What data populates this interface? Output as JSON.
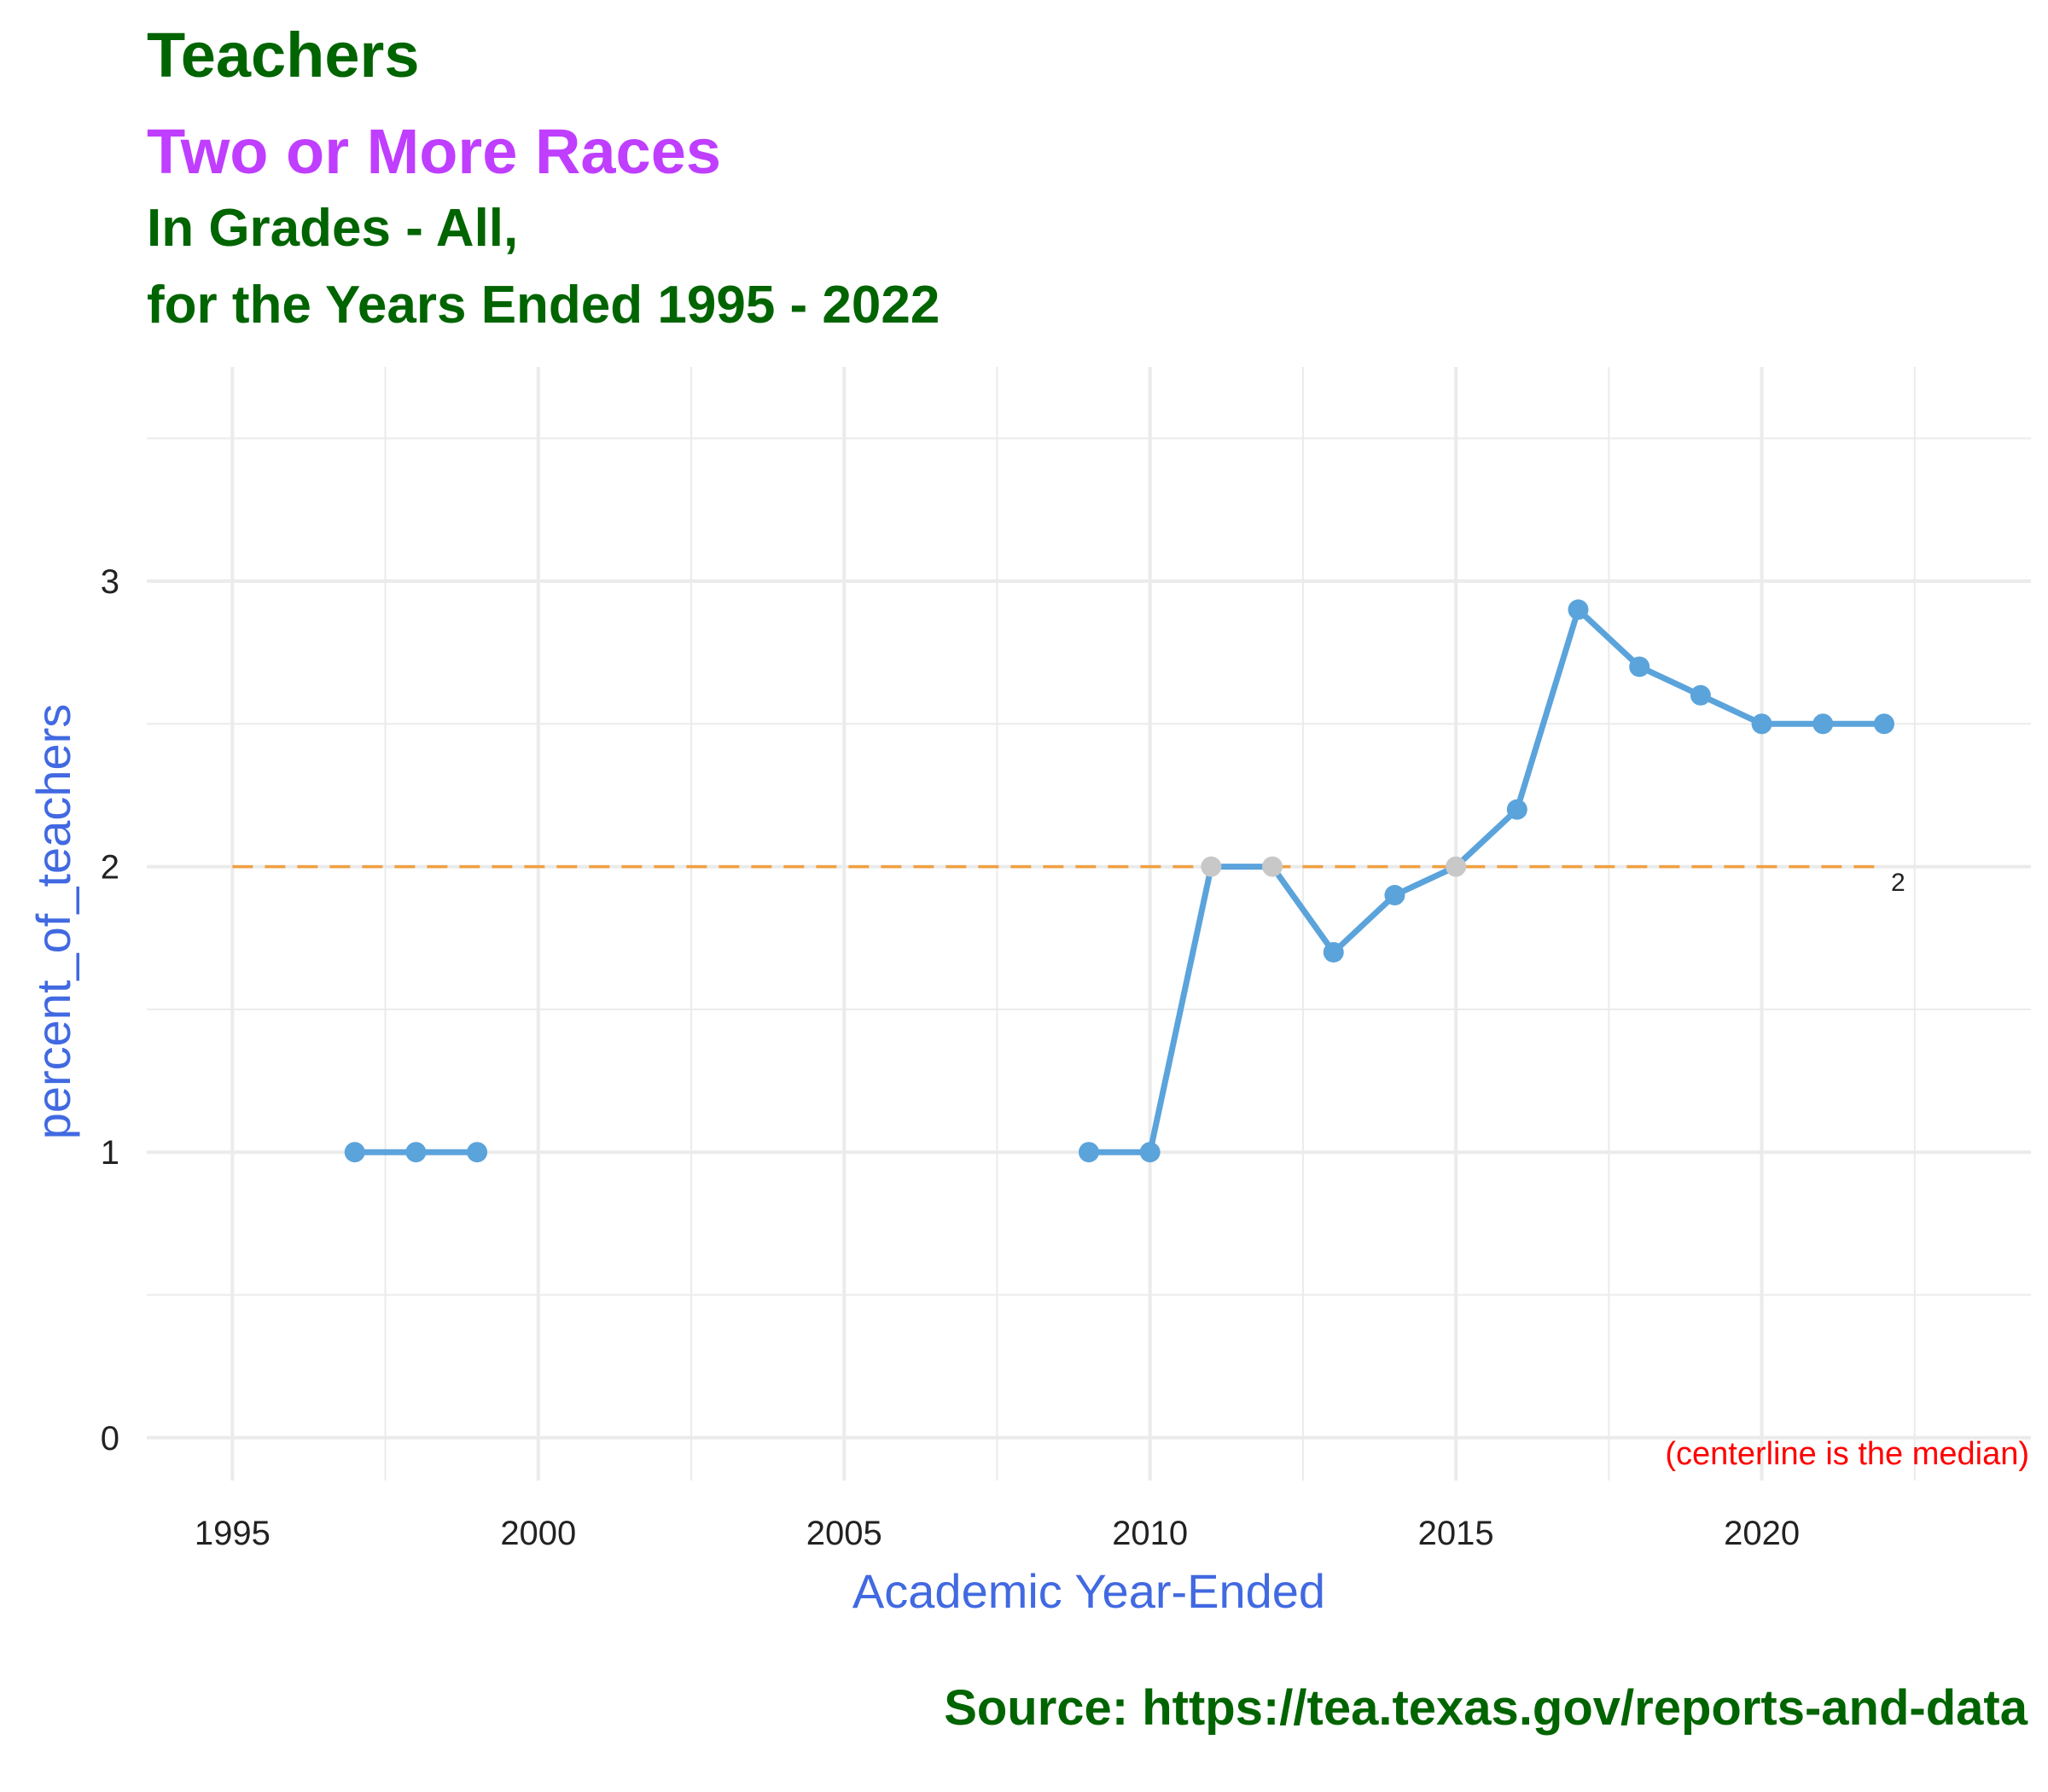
{
  "titles": {
    "line1": "Teachers",
    "line2": "Two or More Races",
    "line3": "In Grades - All,",
    "line4": "for the Years Ended 1995 - 2022"
  },
  "source": "Source:  https://tea.texas.gov/reports-and-data",
  "chart_data": {
    "type": "line",
    "xlabel": "Academic Year-Ended",
    "ylabel": "percent_of_teachers",
    "xlim": [
      1993.6,
      2024.4
    ],
    "ylim": [
      -0.15,
      3.75
    ],
    "x_ticks": [
      1995,
      2000,
      2005,
      2010,
      2015,
      2020
    ],
    "y_ticks": [
      0,
      1,
      2,
      3
    ],
    "grid": true,
    "segments": [
      [
        {
          "x": 1997,
          "y": 1.0
        },
        {
          "x": 1998,
          "y": 1.0
        },
        {
          "x": 1999,
          "y": 1.0
        }
      ],
      [
        {
          "x": 2009,
          "y": 1.0
        },
        {
          "x": 2010,
          "y": 1.0
        },
        {
          "x": 2011,
          "y": 2.0,
          "on_centerline": true
        },
        {
          "x": 2012,
          "y": 2.0,
          "on_centerline": true
        },
        {
          "x": 2013,
          "y": 1.7
        },
        {
          "x": 2014,
          "y": 1.9
        },
        {
          "x": 2015,
          "y": 2.0,
          "on_centerline": true
        },
        {
          "x": 2016,
          "y": 2.2
        },
        {
          "x": 2017,
          "y": 2.9
        },
        {
          "x": 2018,
          "y": 2.7
        },
        {
          "x": 2019,
          "y": 2.6
        },
        {
          "x": 2020,
          "y": 2.5
        },
        {
          "x": 2021,
          "y": 2.5
        },
        {
          "x": 2022,
          "y": 2.5
        }
      ]
    ],
    "centerline": {
      "value": 2,
      "label": "2",
      "x_range": [
        1995,
        2022
      ],
      "note": "(centerline is the median)"
    },
    "colors": {
      "line": "#5BA3DB",
      "point": "#5BA3DB",
      "centerline_point": "#C8C8C8",
      "centerline": "#F0A040",
      "note": "#FF0000",
      "axis_title": "#4169E1",
      "grid": "#EBEBEB"
    }
  }
}
